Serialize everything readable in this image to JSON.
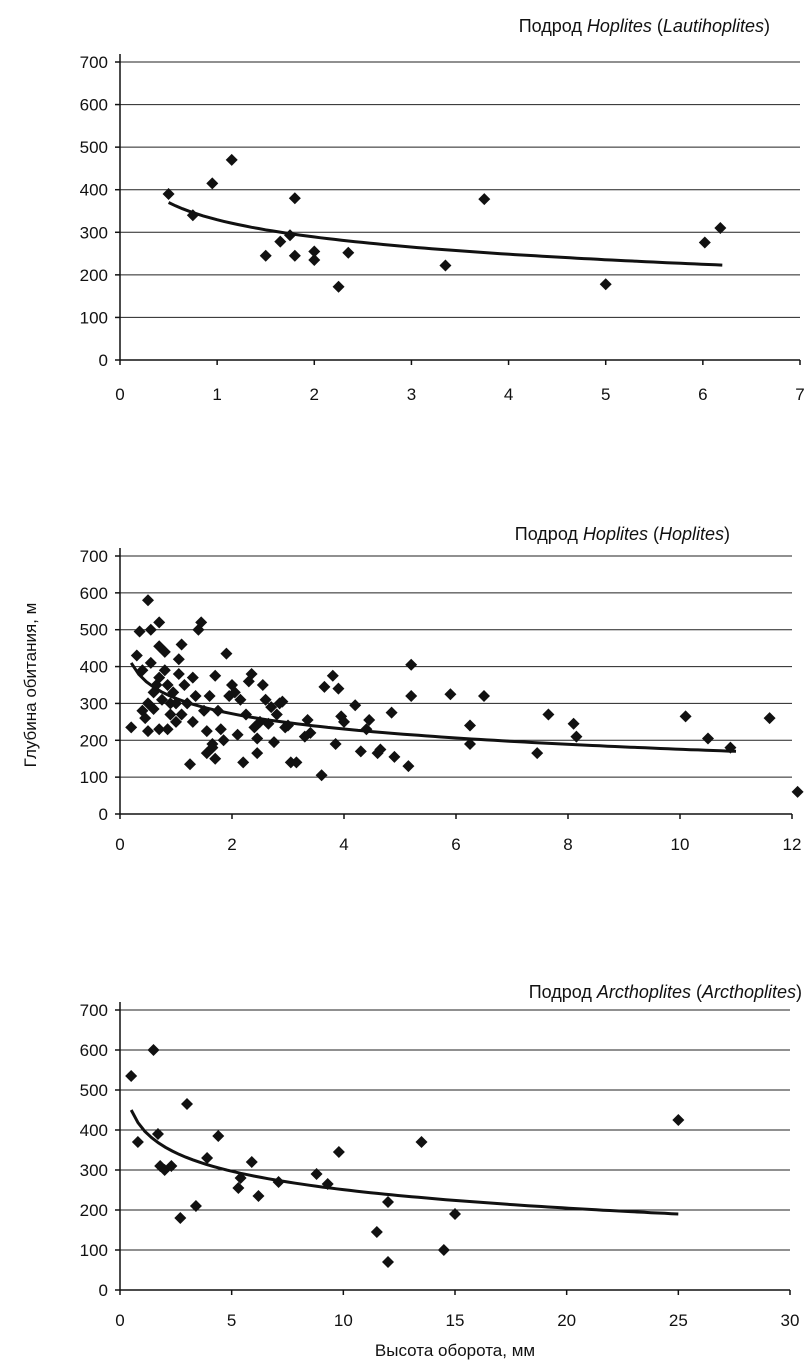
{
  "chart_data": [
    {
      "type": "scatter",
      "title_prefix": "Подрод ",
      "title_genus": "Hoplites",
      "title_subgenus": "Lautihoplites",
      "xlabel": "",
      "ylabel": "",
      "xlim": [
        0,
        7
      ],
      "ylim": [
        0,
        700
      ],
      "xticks": [
        0,
        1,
        2,
        3,
        4,
        5,
        6,
        7
      ],
      "yticks": [
        0,
        100,
        200,
        300,
        400,
        500,
        600,
        700
      ],
      "grid": true,
      "trendline": {
        "type": "log",
        "x_range": [
          0.5,
          6.2
        ],
        "y_start": 370,
        "y_end": 223
      },
      "series": [
        {
          "points": [
            [
              0.5,
              390
            ],
            [
              0.75,
              340
            ],
            [
              0.95,
              415
            ],
            [
              1.15,
              470
            ],
            [
              1.5,
              245
            ],
            [
              1.65,
              278
            ],
            [
              1.75,
              293
            ],
            [
              1.8,
              245
            ],
            [
              1.8,
              380
            ],
            [
              2.0,
              235
            ],
            [
              2.0,
              255
            ],
            [
              2.25,
              172
            ],
            [
              2.35,
              252
            ],
            [
              3.35,
              222
            ],
            [
              3.75,
              378
            ],
            [
              5.0,
              178
            ],
            [
              6.02,
              276
            ],
            [
              6.18,
              310
            ]
          ]
        }
      ]
    },
    {
      "type": "scatter",
      "title_prefix": "Подрод ",
      "title_genus": "Hoplites",
      "title_subgenus": "Hoplites",
      "xlabel": "",
      "ylabel": "Глубина обитания, м",
      "xlim": [
        0,
        12
      ],
      "ylim": [
        0,
        700
      ],
      "xticks": [
        0,
        2,
        4,
        6,
        8,
        10,
        12
      ],
      "yticks": [
        0,
        100,
        200,
        300,
        400,
        500,
        600,
        700
      ],
      "grid": true,
      "trendline": {
        "type": "log",
        "x_range": [
          0.2,
          11
        ],
        "y_start": 410,
        "y_end": 170
      },
      "series": [
        {
          "points": [
            [
              0.2,
              235
            ],
            [
              0.3,
              430
            ],
            [
              0.35,
              495
            ],
            [
              0.4,
              280
            ],
            [
              0.4,
              390
            ],
            [
              0.45,
              260
            ],
            [
              0.5,
              580
            ],
            [
              0.5,
              225
            ],
            [
              0.5,
              300
            ],
            [
              0.55,
              410
            ],
            [
              0.55,
              500
            ],
            [
              0.6,
              285
            ],
            [
              0.6,
              330
            ],
            [
              0.65,
              350
            ],
            [
              0.7,
              230
            ],
            [
              0.7,
              370
            ],
            [
              0.7,
              455
            ],
            [
              0.7,
              520
            ],
            [
              0.75,
              310
            ],
            [
              0.8,
              390
            ],
            [
              0.8,
              440
            ],
            [
              0.85,
              230
            ],
            [
              0.85,
              350
            ],
            [
              0.9,
              270
            ],
            [
              0.9,
              300
            ],
            [
              0.95,
              330
            ],
            [
              1.0,
              300
            ],
            [
              1.0,
              250
            ],
            [
              1.05,
              380
            ],
            [
              1.05,
              420
            ],
            [
              1.1,
              460
            ],
            [
              1.1,
              270
            ],
            [
              1.15,
              350
            ],
            [
              1.2,
              300
            ],
            [
              1.25,
              135
            ],
            [
              1.3,
              250
            ],
            [
              1.3,
              370
            ],
            [
              1.35,
              320
            ],
            [
              1.4,
              500
            ],
            [
              1.45,
              520
            ],
            [
              1.5,
              280
            ],
            [
              1.55,
              225
            ],
            [
              1.55,
              165
            ],
            [
              1.6,
              320
            ],
            [
              1.65,
              180
            ],
            [
              1.65,
              190
            ],
            [
              1.7,
              375
            ],
            [
              1.7,
              150
            ],
            [
              1.75,
              280
            ],
            [
              1.8,
              230
            ],
            [
              1.85,
              200
            ],
            [
              1.9,
              435
            ],
            [
              1.95,
              320
            ],
            [
              2.0,
              350
            ],
            [
              2.05,
              330
            ],
            [
              2.1,
              215
            ],
            [
              2.15,
              310
            ],
            [
              2.2,
              140
            ],
            [
              2.25,
              270
            ],
            [
              2.3,
              360
            ],
            [
              2.35,
              380
            ],
            [
              2.4,
              235
            ],
            [
              2.45,
              205
            ],
            [
              2.45,
              165
            ],
            [
              2.5,
              250
            ],
            [
              2.55,
              350
            ],
            [
              2.6,
              310
            ],
            [
              2.65,
              245
            ],
            [
              2.7,
              290
            ],
            [
              2.75,
              195
            ],
            [
              2.8,
              270
            ],
            [
              2.85,
              300
            ],
            [
              2.9,
              305
            ],
            [
              2.95,
              235
            ],
            [
              3.0,
              240
            ],
            [
              3.05,
              140
            ],
            [
              3.15,
              140
            ],
            [
              3.3,
              210
            ],
            [
              3.35,
              255
            ],
            [
              3.4,
              220
            ],
            [
              3.6,
              105
            ],
            [
              3.65,
              345
            ],
            [
              3.8,
              375
            ],
            [
              3.85,
              190
            ],
            [
              3.9,
              340
            ],
            [
              3.95,
              265
            ],
            [
              4.0,
              250
            ],
            [
              4.2,
              295
            ],
            [
              4.3,
              170
            ],
            [
              4.4,
              230
            ],
            [
              4.45,
              255
            ],
            [
              4.6,
              165
            ],
            [
              4.65,
              175
            ],
            [
              4.85,
              275
            ],
            [
              4.9,
              155
            ],
            [
              5.15,
              130
            ],
            [
              5.2,
              405
            ],
            [
              5.2,
              320
            ],
            [
              5.9,
              325
            ],
            [
              6.25,
              240
            ],
            [
              6.25,
              190
            ],
            [
              6.5,
              320
            ],
            [
              7.45,
              165
            ],
            [
              7.65,
              270
            ],
            [
              8.1,
              245
            ],
            [
              8.15,
              210
            ],
            [
              10.1,
              265
            ],
            [
              10.5,
              205
            ],
            [
              10.9,
              180
            ],
            [
              11.6,
              260
            ],
            [
              12.1,
              60
            ]
          ]
        }
      ]
    },
    {
      "type": "scatter",
      "title_prefix": "Подрод ",
      "title_genus": "Arcthoplites",
      "title_subgenus": "Arcthoplites",
      "xlabel": "Высота оборота, мм",
      "ylabel": "",
      "xlim": [
        0,
        30
      ],
      "ylim": [
        0,
        700
      ],
      "xticks": [
        0,
        5,
        10,
        15,
        20,
        25,
        30
      ],
      "yticks": [
        0,
        100,
        200,
        300,
        400,
        500,
        600,
        700
      ],
      "grid": true,
      "trendline": {
        "type": "log",
        "x_range": [
          0.5,
          25
        ],
        "y_start": 450,
        "y_end": 190
      },
      "series": [
        {
          "points": [
            [
              0.5,
              535
            ],
            [
              0.8,
              370
            ],
            [
              1.5,
              600
            ],
            [
              1.7,
              390
            ],
            [
              1.8,
              310
            ],
            [
              2.0,
              300
            ],
            [
              2.3,
              310
            ],
            [
              2.7,
              180
            ],
            [
              3.0,
              465
            ],
            [
              3.4,
              210
            ],
            [
              3.9,
              330
            ],
            [
              4.4,
              385
            ],
            [
              5.3,
              255
            ],
            [
              5.4,
              280
            ],
            [
              5.9,
              320
            ],
            [
              6.2,
              235
            ],
            [
              7.1,
              270
            ],
            [
              8.8,
              290
            ],
            [
              9.3,
              265
            ],
            [
              9.8,
              345
            ],
            [
              11.5,
              145
            ],
            [
              12.0,
              220
            ],
            [
              12.0,
              70
            ],
            [
              13.5,
              370
            ],
            [
              14.5,
              100
            ],
            [
              15.0,
              190
            ],
            [
              25.0,
              425
            ]
          ]
        }
      ]
    }
  ]
}
